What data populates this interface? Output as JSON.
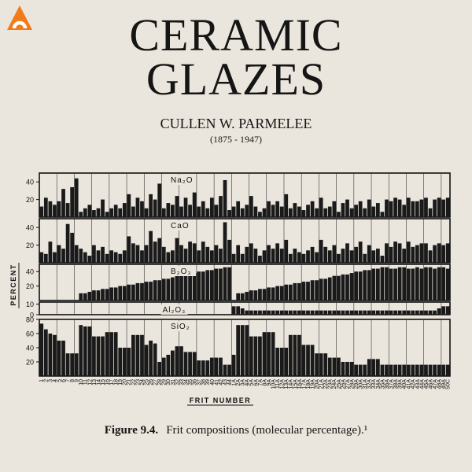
{
  "cover": {
    "title_line1": "CERAMIC",
    "title_line2": "GLAZES",
    "author": "CULLEN W. PARMELEE",
    "years": "(1875 - 1947)"
  },
  "caption": {
    "label": "Figure 9.4.",
    "text": "Frit compositions (molecular percentage).¹"
  },
  "colors": {
    "bars": "#1a1a1a",
    "background": "#ebe6dd",
    "logo": "#f27a18"
  },
  "chart_data": {
    "type": "bar",
    "ylabel": "PERCENT",
    "xlabel": "FRIT NUMBER",
    "categories": [
      "1",
      "2",
      "3",
      "4",
      "5",
      "6",
      "7",
      "8",
      "9",
      "10",
      "11",
      "12",
      "13",
      "14",
      "15",
      "16",
      "17",
      "18",
      "19",
      "20",
      "21",
      "22",
      "23",
      "24",
      "25",
      "26",
      "27",
      "28",
      "29",
      "30",
      "31",
      "32",
      "33",
      "34",
      "35",
      "36",
      "37",
      "38",
      "39",
      "40",
      "41",
      "42",
      "43",
      "44",
      "1A",
      "2A",
      "3A",
      "4A",
      "5A",
      "6A",
      "7A",
      "8A",
      "9A",
      "10A",
      "11A",
      "12A",
      "13A",
      "14A",
      "15A",
      "16A",
      "17A",
      "18A",
      "19A",
      "20A",
      "21A",
      "22A",
      "23A",
      "24A",
      "25A",
      "26A",
      "27A",
      "28A",
      "29A",
      "30A",
      "31A",
      "32A",
      "33A",
      "34A",
      "35A",
      "36A",
      "37A",
      "38A",
      "39A",
      "40A",
      "41A",
      "42A",
      "43A",
      "44A",
      "45A",
      "46A",
      "47A",
      "48A",
      "49A",
      "50C"
    ],
    "panels": [
      {
        "name": "Na₂O",
        "ylim": [
          0,
          50
        ],
        "yticks": [
          20,
          40
        ],
        "values": [
          12,
          22,
          18,
          14,
          18,
          32,
          16,
          34,
          44,
          6,
          10,
          14,
          8,
          10,
          20,
          6,
          10,
          14,
          10,
          16,
          26,
          12,
          22,
          18,
          10,
          26,
          20,
          38,
          10,
          16,
          14,
          24,
          12,
          22,
          14,
          28,
          12,
          18,
          10,
          22,
          14,
          24,
          42,
          8,
          12,
          18,
          10,
          14,
          24,
          12,
          6,
          10,
          18,
          14,
          18,
          12,
          26,
          10,
          16,
          12,
          8,
          14,
          18,
          10,
          22,
          10,
          12,
          18,
          6,
          16,
          20,
          10,
          14,
          18,
          10,
          20,
          12,
          16,
          6,
          20,
          18,
          22,
          20,
          14,
          22,
          18,
          18,
          20,
          22,
          10,
          20,
          22,
          20,
          22
        ]
      },
      {
        "name": "CaO",
        "ylim": [
          0,
          50
        ],
        "yticks": [
          20,
          40
        ],
        "values": [
          12,
          10,
          24,
          12,
          20,
          16,
          44,
          34,
          20,
          16,
          12,
          8,
          20,
          14,
          18,
          10,
          14,
          12,
          10,
          14,
          30,
          22,
          20,
          14,
          20,
          36,
          24,
          28,
          18,
          12,
          14,
          28,
          20,
          16,
          24,
          22,
          14,
          24,
          18,
          14,
          20,
          16,
          46,
          26,
          10,
          20,
          10,
          18,
          22,
          16,
          8,
          14,
          20,
          16,
          22,
          16,
          26,
          10,
          16,
          12,
          10,
          14,
          18,
          12,
          26,
          18,
          14,
          20,
          10,
          16,
          22,
          14,
          18,
          24,
          10,
          20,
          14,
          16,
          8,
          22,
          18,
          24,
          22,
          16,
          24,
          18,
          20,
          22,
          22,
          14,
          20,
          22,
          20,
          22
        ]
      },
      {
        "name": "B₂O₃",
        "ylim": [
          0,
          50
        ],
        "yticks": [
          20,
          40
        ],
        "values": [
          0,
          0,
          0,
          0,
          0,
          0,
          0,
          0,
          0,
          10,
          10,
          12,
          14,
          14,
          16,
          16,
          18,
          18,
          20,
          20,
          22,
          22,
          24,
          24,
          26,
          26,
          28,
          28,
          30,
          30,
          32,
          34,
          34,
          36,
          36,
          38,
          40,
          40,
          42,
          42,
          44,
          44,
          46,
          46,
          0,
          10,
          10,
          12,
          14,
          14,
          16,
          16,
          18,
          18,
          20,
          20,
          22,
          22,
          24,
          24,
          26,
          26,
          28,
          28,
          30,
          30,
          32,
          34,
          34,
          36,
          36,
          38,
          40,
          40,
          42,
          42,
          44,
          44,
          46,
          46,
          44,
          44,
          46,
          46,
          44,
          44,
          46,
          44,
          46,
          46,
          44,
          46,
          46,
          44
        ]
      },
      {
        "name": "Al₂O₃",
        "ylim": [
          0,
          12
        ],
        "yticks": [
          0,
          10
        ],
        "values": [
          0,
          0,
          0,
          0,
          0,
          0,
          0,
          0,
          0,
          0,
          0,
          0,
          0,
          0,
          0,
          0,
          0,
          0,
          0,
          0,
          0,
          0,
          0,
          0,
          0,
          0,
          0,
          0,
          0,
          0,
          0,
          0,
          0,
          0,
          0,
          0,
          0,
          0,
          0,
          0,
          0,
          0,
          0,
          0,
          8,
          8,
          6,
          4,
          4,
          4,
          4,
          4,
          4,
          4,
          4,
          4,
          4,
          4,
          4,
          4,
          4,
          4,
          4,
          4,
          4,
          4,
          4,
          4,
          4,
          4,
          4,
          4,
          4,
          4,
          4,
          4,
          4,
          4,
          4,
          4,
          4,
          4,
          4,
          4,
          4,
          4,
          4,
          4,
          4,
          4,
          4,
          6,
          8,
          8
        ]
      },
      {
        "name": "SiO₂",
        "ylim": [
          0,
          80
        ],
        "yticks": [
          20,
          40,
          60,
          80
        ],
        "values": [
          74,
          66,
          60,
          58,
          50,
          50,
          32,
          32,
          32,
          72,
          70,
          70,
          56,
          56,
          56,
          62,
          62,
          62,
          40,
          40,
          40,
          58,
          58,
          58,
          44,
          50,
          46,
          20,
          26,
          30,
          36,
          42,
          42,
          34,
          34,
          34,
          22,
          22,
          22,
          26,
          26,
          26,
          16,
          16,
          30,
          72,
          72,
          72,
          56,
          56,
          56,
          62,
          62,
          62,
          40,
          40,
          40,
          58,
          58,
          58,
          44,
          44,
          44,
          32,
          32,
          32,
          26,
          26,
          26,
          20,
          20,
          20,
          16,
          16,
          16,
          24,
          24,
          24,
          16,
          16,
          16,
          16,
          16,
          16,
          16,
          16,
          16,
          16,
          16,
          16,
          16,
          16,
          16,
          16
        ]
      }
    ]
  }
}
